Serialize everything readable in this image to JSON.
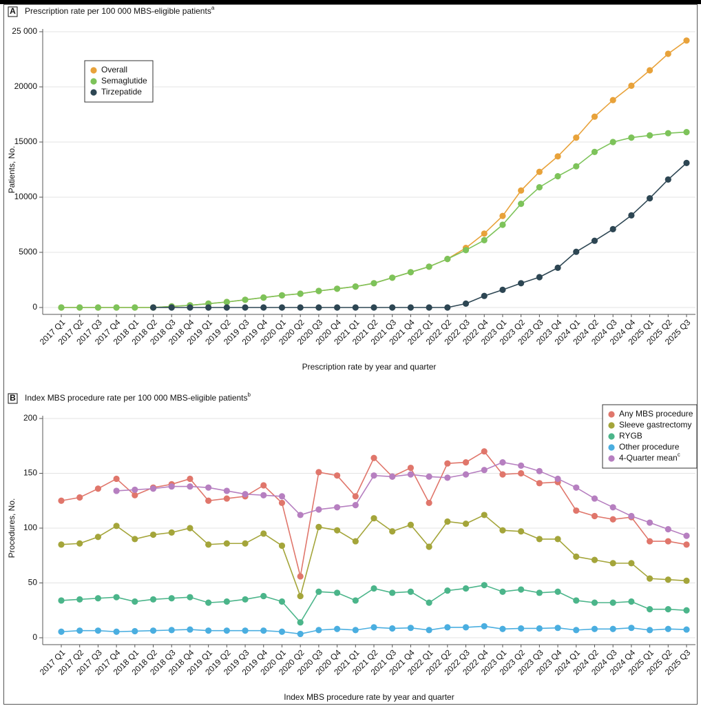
{
  "chart_data": [
    {
      "type": "line",
      "panel_label": "A",
      "title": "Prescription rate per 100 000 MBS-eligible patients",
      "title_note": "a",
      "x_label": "Prescription rate by year and quarter",
      "y_label": "Patients, No.",
      "categories": [
        "2017 Q1",
        "2017 Q2",
        "2017 Q3",
        "2017 Q4",
        "2018 Q1",
        "2018 Q2",
        "2018 Q3",
        "2018 Q4",
        "2019 Q1",
        "2019 Q2",
        "2019 Q3",
        "2019 Q4",
        "2020 Q1",
        "2020 Q2",
        "2020 Q3",
        "2020 Q4",
        "2021 Q1",
        "2021 Q2",
        "2021 Q3",
        "2021 Q4",
        "2022 Q1",
        "2022 Q2",
        "2022 Q3",
        "2022 Q4",
        "2023 Q1",
        "2023 Q2",
        "2023 Q3",
        "2023 Q4",
        "2024 Q1",
        "2024 Q2",
        "2024 Q3",
        "2024 Q4",
        "2025 Q1",
        "2025 Q2",
        "2025 Q3"
      ],
      "series": [
        {
          "name": "Overall",
          "color": "#e8a23a",
          "values": [
            0,
            0,
            0,
            0,
            0,
            0,
            100,
            200,
            350,
            500,
            700,
            900,
            1100,
            1250,
            1500,
            1700,
            1900,
            2200,
            2700,
            3200,
            3700,
            4400,
            5400,
            6700,
            8300,
            10600,
            12300,
            13700,
            15400,
            17300,
            18800,
            20100,
            21500,
            23000,
            24200
          ]
        },
        {
          "name": "Semaglutide",
          "color": "#7dc35a",
          "values": [
            0,
            0,
            0,
            0,
            0,
            0,
            100,
            200,
            350,
            500,
            700,
            900,
            1100,
            1250,
            1500,
            1700,
            1900,
            2200,
            2700,
            3200,
            3700,
            4400,
            5200,
            6100,
            7500,
            9400,
            10900,
            11900,
            12800,
            14100,
            15000,
            15400,
            15600,
            15800,
            15900
          ]
        },
        {
          "name": "Tirzepatide",
          "color": "#2d4653",
          "values": [
            null,
            null,
            null,
            null,
            null,
            0,
            0,
            0,
            0,
            0,
            0,
            0,
            0,
            0,
            0,
            0,
            0,
            0,
            0,
            0,
            0,
            0,
            350,
            1050,
            1600,
            2200,
            2750,
            3600,
            5050,
            6050,
            7100,
            8350,
            9900,
            11600,
            13100
          ]
        }
      ],
      "ylim": [
        0,
        25000
      ],
      "yticks": [
        0,
        5000,
        10000,
        15000,
        20000,
        {
          "value": 25000,
          "label": "25 000"
        }
      ],
      "grid": true,
      "legend": "upper left"
    },
    {
      "type": "line",
      "panel_label": "B",
      "title": "Index MBS procedure rate per 100 000 MBS-eligible patients",
      "title_note": "b",
      "x_label": "Index MBS procedure rate by year and quarter",
      "y_label": "Procedures, No.",
      "categories": [
        "2017 Q1",
        "2017 Q2",
        "2017 Q3",
        "2017 Q4",
        "2018 Q1",
        "2018 Q2",
        "2018 Q3",
        "2018 Q4",
        "2019 Q1",
        "2019 Q2",
        "2019 Q3",
        "2019 Q4",
        "2020 Q1",
        "2020 Q2",
        "2020 Q3",
        "2020 Q4",
        "2021 Q1",
        "2021 Q2",
        "2021 Q3",
        "2021 Q4",
        "2022 Q1",
        "2022 Q2",
        "2022 Q3",
        "2022 Q4",
        "2023 Q1",
        "2023 Q2",
        "2023 Q3",
        "2023 Q4",
        "2024 Q1",
        "2024 Q2",
        "2024 Q3",
        "2024 Q4",
        "2025 Q1",
        "2025 Q2",
        "2025 Q3"
      ],
      "series": [
        {
          "name": "Any MBS procedure",
          "color": "#e0766b",
          "values": [
            125,
            128,
            136,
            145,
            130,
            137,
            140,
            145,
            125,
            127,
            129,
            139,
            123,
            56,
            151,
            148,
            129,
            164,
            147,
            155,
            123,
            159,
            160,
            170,
            149,
            150,
            141,
            142,
            116,
            111,
            108,
            110,
            88,
            88,
            85
          ]
        },
        {
          "name": "Sleeve gastrectomy",
          "color": "#a4a53a",
          "values": [
            85,
            86,
            92,
            102,
            90,
            94,
            96,
            100,
            85,
            86,
            86,
            95,
            84,
            38,
            101,
            98,
            88,
            109,
            97,
            103,
            83,
            106,
            104,
            112,
            98,
            97,
            90,
            90,
            74,
            71,
            68,
            68,
            54,
            53,
            52
          ]
        },
        {
          "name": "RYGB",
          "color": "#4bb58a",
          "values": [
            34,
            35,
            36,
            37,
            33,
            35,
            36,
            37,
            32,
            33,
            35,
            38,
            33,
            14,
            42,
            41,
            34,
            45,
            41,
            42,
            32,
            43,
            45,
            48,
            42,
            44,
            41,
            42,
            34,
            32,
            32,
            33,
            26,
            26,
            25
          ]
        },
        {
          "name": "Other procedure",
          "color": "#4aaee0",
          "values": [
            5.5,
            6.5,
            6.5,
            5.5,
            6,
            6.5,
            7,
            7.5,
            6.5,
            6.5,
            6.5,
            6.5,
            5.5,
            3.5,
            7,
            8,
            7,
            9.5,
            8.5,
            9,
            7,
            9.5,
            9.5,
            10.5,
            8,
            8.5,
            8.5,
            9,
            7,
            8,
            8,
            9,
            7,
            8,
            7.5
          ]
        },
        {
          "name": "4-Quarter mean",
          "name_note": "c",
          "color": "#b67fc0",
          "values": [
            null,
            null,
            null,
            134,
            135,
            136,
            138,
            138,
            137,
            134,
            131,
            130,
            129,
            112,
            117,
            119,
            121,
            148,
            147,
            149,
            147,
            146,
            149,
            153,
            160,
            157,
            152,
            145,
            137,
            127,
            119,
            111,
            105,
            99,
            93
          ]
        }
      ],
      "ylim": [
        0,
        200
      ],
      "yticks": [
        0,
        50,
        100,
        150,
        200
      ],
      "grid": true,
      "legend": "upper right"
    }
  ]
}
